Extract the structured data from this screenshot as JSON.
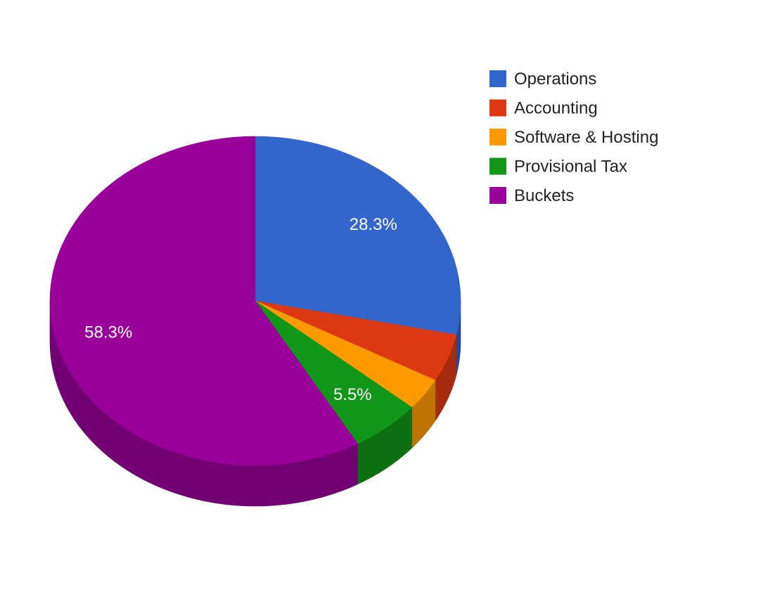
{
  "chart_data": {
    "type": "pie",
    "is_3d": true,
    "legend_position": "right",
    "categories": [
      "Operations",
      "Accounting",
      "Software & Hosting",
      "Provisional Tax",
      "Buckets"
    ],
    "values": [
      28.3,
      4.7,
      3.2,
      5.5,
      58.3
    ],
    "colors": [
      "#3366cc",
      "#dc3912",
      "#ff9900",
      "#109618",
      "#990099"
    ],
    "side_colors": [
      "#28479a",
      "#a62b0e",
      "#c07400",
      "#0c7012",
      "#730073"
    ],
    "slice_labels": [
      "28.3%",
      "",
      "",
      "5.5%",
      "58.3%"
    ]
  }
}
